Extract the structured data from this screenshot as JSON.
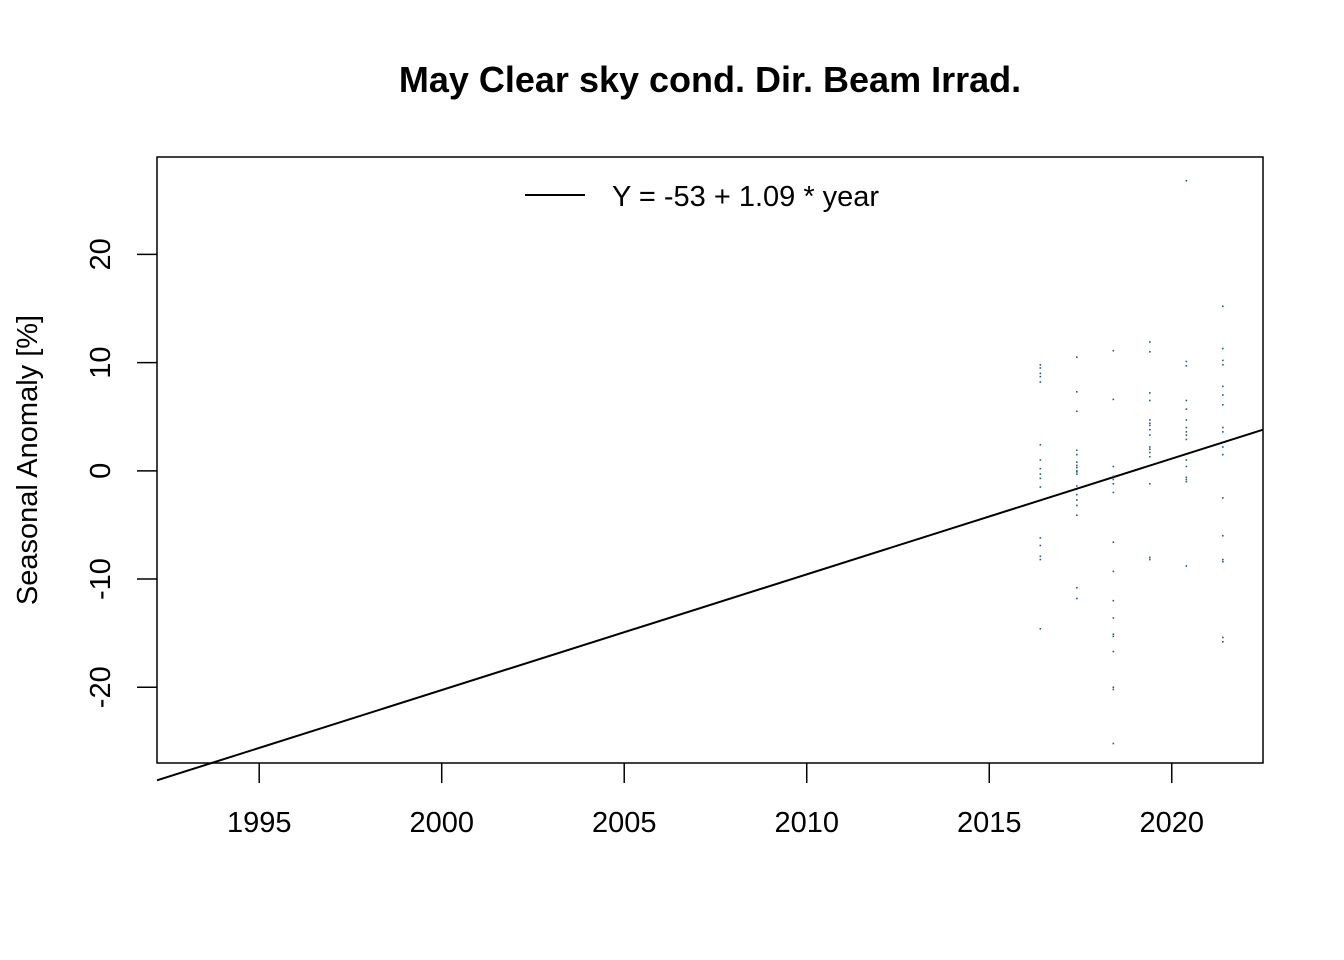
{
  "chart_data": {
    "type": "scatter",
    "title": "May Clear sky cond. Dir. Beam Irrad.",
    "xlabel": "",
    "ylabel": "Seasonal Anomaly [%]",
    "xlim": [
      1992.2,
      2022.5
    ],
    "ylim": [
      -27,
      29
    ],
    "xticks": [
      1995,
      2000,
      2005,
      2010,
      2015,
      2020
    ],
    "yticks": [
      -20,
      -10,
      0,
      10,
      20
    ],
    "grid": false,
    "point_color": "#1f5f8b",
    "line_color": "#000000",
    "legend": {
      "position": "top",
      "entries": [
        {
          "label": "Y = -53 + 1.09 * year",
          "style": "line"
        }
      ]
    },
    "trend_line": {
      "x": [
        1992.2,
        2022.5
      ],
      "y": [
        -28.6,
        3.8
      ]
    },
    "series": [
      {
        "x": [
          2016.4,
          2016.4,
          2016.4,
          2016.4,
          2016.4,
          2016.4,
          2016.4,
          2016.4,
          2016.4,
          2016.4,
          2016.4,
          2016.4,
          2016.4,
          2016.4,
          2016.4,
          2016.4,
          2017.4,
          2017.4,
          2017.4,
          2017.4,
          2017.4,
          2017.4,
          2017.4,
          2017.4,
          2017.4,
          2017.4,
          2017.4,
          2017.4,
          2017.4,
          2017.4,
          2017.4,
          2017.4,
          2017.4,
          2017.4,
          2018.4,
          2018.4,
          2018.4,
          2018.4,
          2018.4,
          2018.4,
          2018.4,
          2018.4,
          2018.4,
          2018.4,
          2018.4,
          2018.4,
          2018.4,
          2018.4,
          2018.4,
          2018.4,
          2018.4,
          2019.4,
          2019.4,
          2019.4,
          2019.4,
          2019.4,
          2019.4,
          2019.4,
          2019.4,
          2019.4,
          2019.4,
          2019.4,
          2019.4,
          2019.4,
          2019.4,
          2019.4,
          2019.4,
          2020.4,
          2020.4,
          2020.4,
          2020.4,
          2020.4,
          2020.4,
          2020.4,
          2020.4,
          2020.4,
          2020.4,
          2020.4,
          2020.4,
          2020.4,
          2020.4,
          2020.4,
          2020.4,
          2021.4,
          2021.4,
          2021.4,
          2021.4,
          2021.4,
          2021.4,
          2021.4,
          2021.4,
          2021.4,
          2021.4,
          2021.4,
          2021.4,
          2021.4,
          2021.4,
          2021.4,
          2021.4,
          2021.4
        ],
        "y": [
          9.8,
          9.5,
          8.7,
          8.2,
          2.4,
          1.0,
          -0.7,
          -1.5,
          -6.2,
          -6.9,
          -7.9,
          -8.2,
          -14.6,
          9.0,
          0.2,
          -0.3,
          10.5,
          7.3,
          5.5,
          1.9,
          1.5,
          0.8,
          0.3,
          0.0,
          -0.3,
          -1.4,
          -2.2,
          -3.2,
          -4.1,
          -10.8,
          -11.8,
          0.5,
          -0.1,
          -2.7,
          11.1,
          6.6,
          0.4,
          -0.5,
          -0.8,
          -2.0,
          -6.6,
          -9.3,
          -12.0,
          -13.6,
          -15.1,
          -15.3,
          -16.7,
          -20.0,
          -20.2,
          -25.2,
          -1.2,
          11.9,
          11.0,
          7.2,
          6.5,
          4.7,
          4.2,
          3.8,
          3.3,
          2.2,
          1.7,
          1.3,
          -1.2,
          -8.2,
          -8.0,
          4.4,
          2.0,
          26.8,
          10.1,
          9.7,
          6.5,
          5.7,
          4.7,
          4.0,
          3.3,
          2.9,
          1.0,
          0.4,
          -0.8,
          -1.0,
          -8.8,
          3.6,
          -0.6,
          15.2,
          11.3,
          10.2,
          9.8,
          7.8,
          7.0,
          6.1,
          4.0,
          3.6,
          1.5,
          -2.5,
          -6.0,
          -8.4,
          -8.2,
          -15.4,
          -15.8,
          2.2
        ]
      }
    ]
  }
}
